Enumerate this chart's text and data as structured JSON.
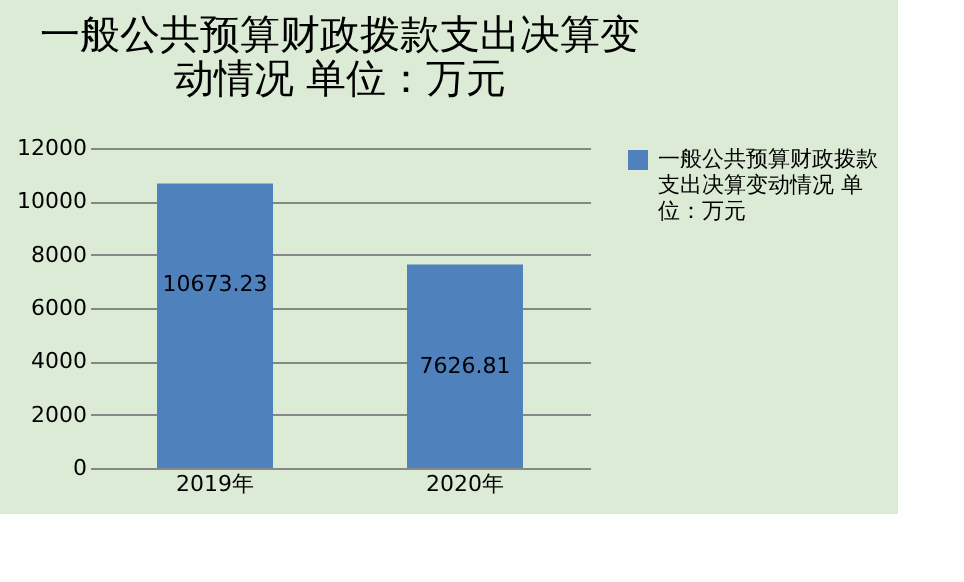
{
  "chart_data": {
    "type": "bar",
    "title": "一般公共预算财政拨款支出决算变动情况 单位：万元",
    "categories": [
      "2019年",
      "2020年"
    ],
    "series": [
      {
        "name": "一般公共预算财政拨款支出决算变动情况 单位：万元",
        "color": "#4f81bd",
        "values": [
          10673.23,
          7626.81
        ]
      }
    ],
    "ylim": [
      0,
      12000
    ],
    "yticks": [
      0,
      2000,
      4000,
      6000,
      8000,
      10000,
      12000
    ],
    "grid": "y",
    "legend": "right",
    "data_labels": true
  }
}
